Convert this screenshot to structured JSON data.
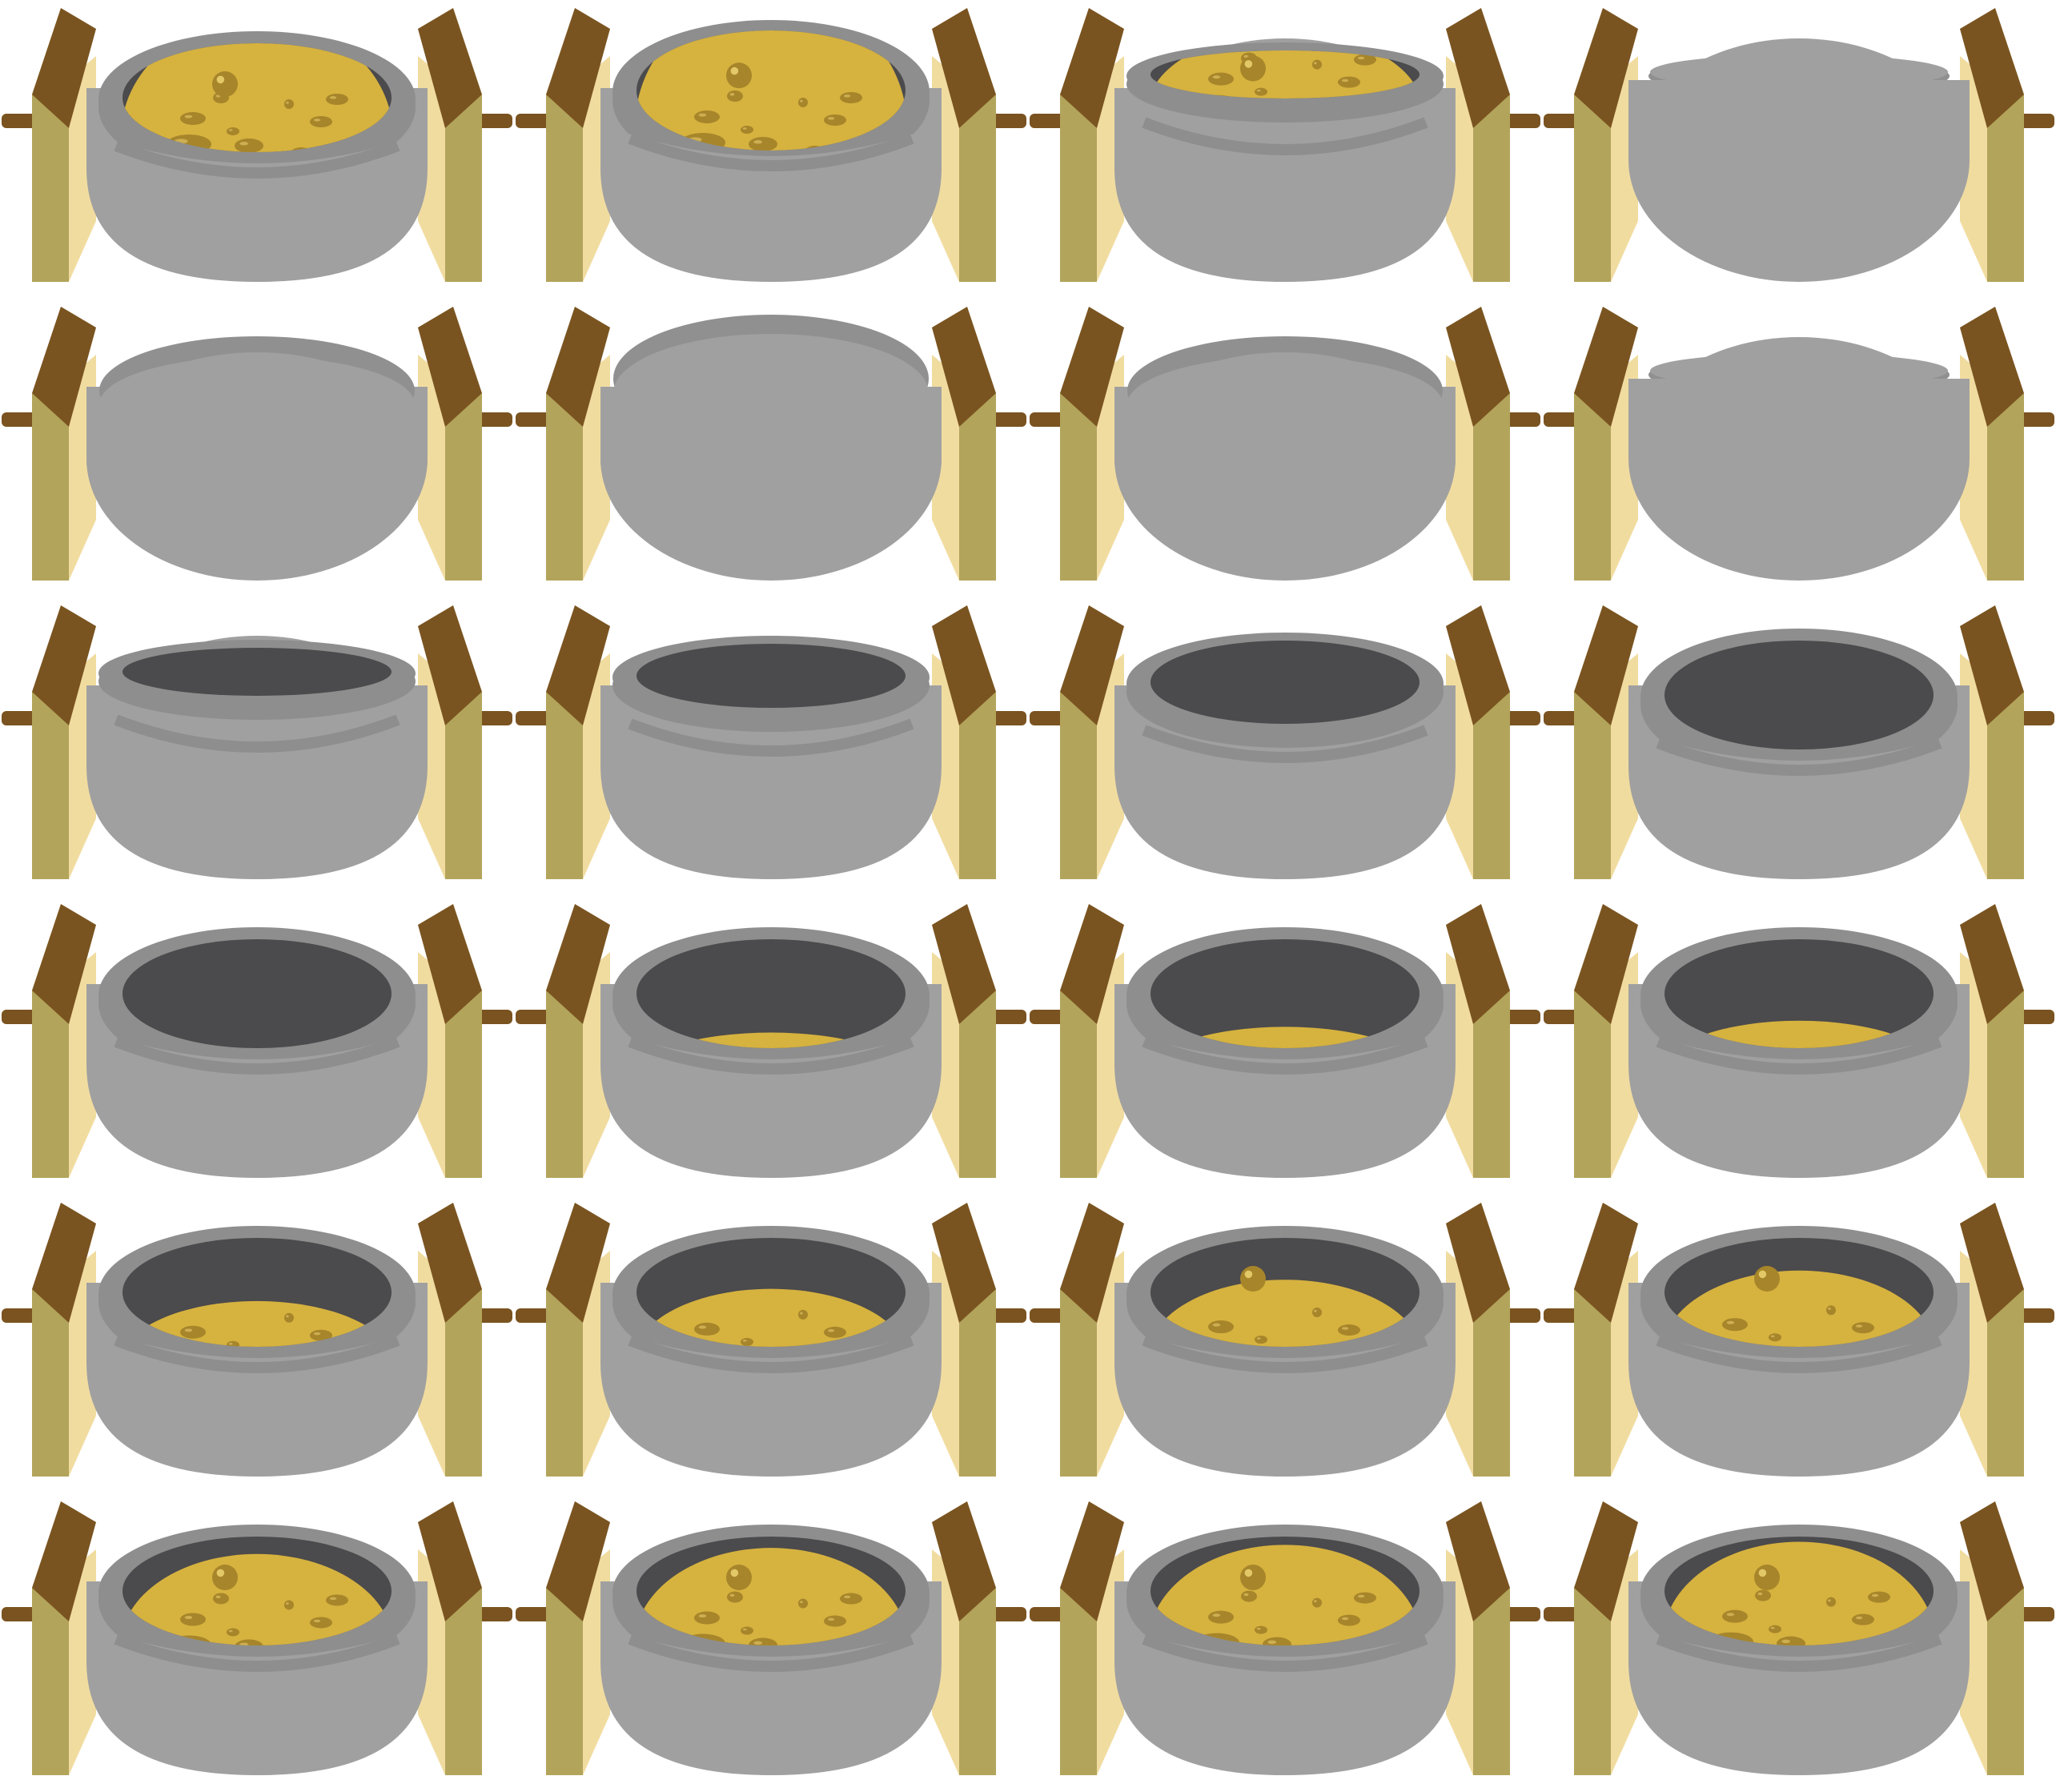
{
  "sprite_sheet": {
    "columns": 4,
    "rows": 6,
    "colors": {
      "background": "#ffffff",
      "pot_body": "#a0a0a0",
      "pot_rim": "#8e8e8e",
      "pot_interior": "#4b4a4c",
      "lid": "#a0a0a0",
      "lid_rim": "#909090",
      "soup": "#d6b23f",
      "soup_bubble": "#a7852a",
      "bubble_highlight": "#f3d878",
      "spit": "#7a5320",
      "post_front": "#b2a45b",
      "post_side": "#f1dca0",
      "post_cap": "#7a5420"
    },
    "frames": [
      {
        "row": 1,
        "col": 1,
        "state": "open",
        "rim": "wide",
        "soup_level": 0.88,
        "bubbles": "boiling"
      },
      {
        "row": 1,
        "col": 2,
        "state": "open",
        "rim": "wide-tilted",
        "soup_level": 0.92,
        "bubbles": "boiling"
      },
      {
        "row": 1,
        "col": 3,
        "state": "open",
        "rim": "flat",
        "soup_level": 0.97,
        "bubbles": "boiling"
      },
      {
        "row": 1,
        "col": 4,
        "state": "lid-closed",
        "rim": "flat",
        "soup_level": 0,
        "bubbles": "none"
      },
      {
        "row": 2,
        "col": 1,
        "state": "dome-lid",
        "rim": "dome",
        "soup_level": 0,
        "bubbles": "none"
      },
      {
        "row": 2,
        "col": 2,
        "state": "dome-lid",
        "rim": "dome-tall",
        "soup_level": 0,
        "bubbles": "none"
      },
      {
        "row": 2,
        "col": 3,
        "state": "dome-lid",
        "rim": "dome",
        "soup_level": 0,
        "bubbles": "none"
      },
      {
        "row": 2,
        "col": 4,
        "state": "lid-closed",
        "rim": "flat",
        "soup_level": 0,
        "bubbles": "none"
      },
      {
        "row": 3,
        "col": 1,
        "state": "open",
        "rim": "flat",
        "soup_level": 0,
        "bubbles": "none"
      },
      {
        "row": 3,
        "col": 2,
        "state": "open",
        "rim": "shallow",
        "soup_level": 0,
        "bubbles": "none"
      },
      {
        "row": 3,
        "col": 3,
        "state": "open",
        "rim": "medium",
        "soup_level": 0,
        "bubbles": "none"
      },
      {
        "row": 3,
        "col": 4,
        "state": "open",
        "rim": "wide",
        "soup_level": 0,
        "bubbles": "none"
      },
      {
        "row": 4,
        "col": 1,
        "state": "open",
        "rim": "wide",
        "soup_level": 0,
        "bubbles": "none"
      },
      {
        "row": 4,
        "col": 2,
        "state": "open",
        "rim": "wide",
        "soup_level": 0.08,
        "bubbles": "none"
      },
      {
        "row": 4,
        "col": 3,
        "state": "open",
        "rim": "wide",
        "soup_level": 0.14,
        "bubbles": "none"
      },
      {
        "row": 4,
        "col": 4,
        "state": "open",
        "rim": "wide",
        "soup_level": 0.18,
        "bubbles": "none"
      },
      {
        "row": 5,
        "col": 1,
        "state": "open",
        "rim": "wide",
        "soup_level": 0.3,
        "bubbles": "few"
      },
      {
        "row": 5,
        "col": 2,
        "state": "open",
        "rim": "wide",
        "soup_level": 0.38,
        "bubbles": "few"
      },
      {
        "row": 5,
        "col": 3,
        "state": "open",
        "rim": "wide",
        "soup_level": 0.44,
        "bubbles": "rising"
      },
      {
        "row": 5,
        "col": 4,
        "state": "open",
        "rim": "wide",
        "soup_level": 0.5,
        "bubbles": "rising"
      },
      {
        "row": 6,
        "col": 1,
        "state": "open",
        "rim": "wide",
        "soup_level": 0.6,
        "bubbles": "boiling"
      },
      {
        "row": 6,
        "col": 2,
        "state": "open",
        "rim": "wide",
        "soup_level": 0.64,
        "bubbles": "boiling"
      },
      {
        "row": 6,
        "col": 3,
        "state": "open",
        "rim": "wide",
        "soup_level": 0.66,
        "bubbles": "boiling"
      },
      {
        "row": 6,
        "col": 4,
        "state": "open",
        "rim": "wide",
        "soup_level": 0.68,
        "bubbles": "boiling"
      }
    ]
  }
}
